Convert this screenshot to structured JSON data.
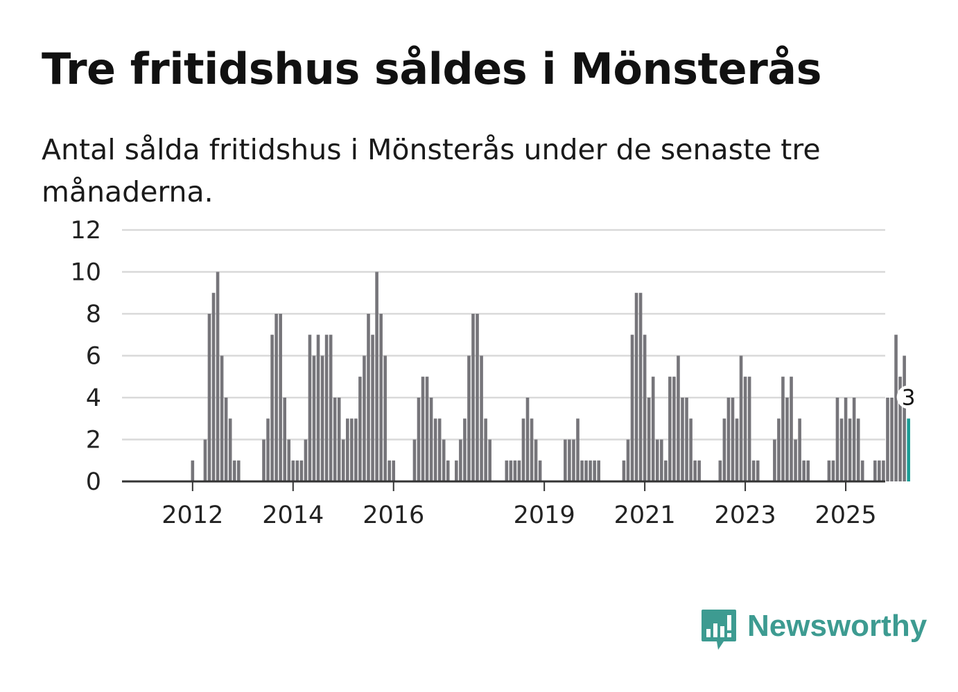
{
  "header": {
    "title": "Tre fritidshus såldes i Mönsterås",
    "subtitle": "Antal sålda fritidshus i Mönsterås under de senaste tre månaderna."
  },
  "brand": {
    "name": "Newsworthy",
    "color": "#3d9b91",
    "icon": "newsworthy-logo-icon"
  },
  "colors": {
    "bar": "#76757a",
    "highlight": "#1a9c95",
    "grid": "#d9d9d9",
    "axis": "#333333",
    "text": "#222222"
  },
  "chart_data": {
    "type": "bar",
    "title": "Tre fritidshus såldes i Mönsterås",
    "subtitle": "Antal sålda fritidshus i Mönsterås under de senaste tre månaderna.",
    "xlabel": "",
    "ylabel": "",
    "ylim": [
      0,
      12
    ],
    "yticks": [
      0,
      2,
      4,
      6,
      8,
      10,
      12
    ],
    "grid": true,
    "x_start": "2011-05",
    "x_tick_labels": [
      {
        "label": "2012",
        "index": 8
      },
      {
        "label": "2014",
        "index": 32
      },
      {
        "label": "2016",
        "index": 56
      },
      {
        "label": "2019",
        "index": 92
      },
      {
        "label": "2021",
        "index": 116
      },
      {
        "label": "2023",
        "index": 140
      },
      {
        "label": "2025",
        "index": 164
      }
    ],
    "values": [
      0,
      0,
      0,
      0,
      0,
      0,
      0,
      0,
      1,
      0,
      0,
      2,
      8,
      9,
      10,
      6,
      4,
      3,
      1,
      1,
      0,
      0,
      0,
      0,
      0,
      2,
      3,
      7,
      8,
      8,
      4,
      2,
      1,
      1,
      1,
      2,
      7,
      6,
      7,
      6,
      7,
      7,
      4,
      4,
      2,
      3,
      3,
      3,
      5,
      6,
      8,
      7,
      10,
      8,
      6,
      1,
      1,
      0,
      0,
      0,
      0,
      2,
      4,
      5,
      5,
      4,
      3,
      3,
      2,
      1,
      0,
      1,
      2,
      3,
      6,
      8,
      8,
      6,
      3,
      2,
      0,
      0,
      0,
      1,
      1,
      1,
      1,
      3,
      4,
      3,
      2,
      1,
      0,
      0,
      0,
      0,
      0,
      2,
      2,
      2,
      3,
      1,
      1,
      1,
      1,
      1,
      0,
      0,
      0,
      0,
      0,
      1,
      2,
      7,
      9,
      9,
      7,
      4,
      5,
      2,
      2,
      1,
      5,
      5,
      6,
      4,
      4,
      3,
      1,
      1,
      0,
      0,
      0,
      0,
      1,
      3,
      4,
      4,
      3,
      6,
      5,
      5,
      1,
      1,
      0,
      0,
      0,
      2,
      3,
      5,
      4,
      5,
      2,
      3,
      1,
      1,
      0,
      0,
      0,
      0,
      1,
      1,
      4,
      3,
      4,
      3,
      4,
      3,
      1,
      0,
      0,
      1,
      1,
      1,
      4,
      4,
      7,
      5,
      6,
      3
    ],
    "highlight_index": 179,
    "highlight_label": "3"
  }
}
